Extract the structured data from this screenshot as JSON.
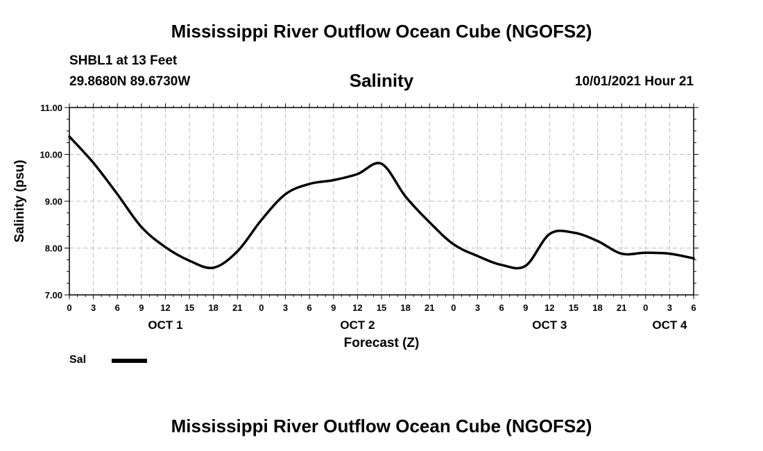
{
  "header": {
    "title": "Mississippi River Outflow Ocean Cube (NGOFS2)",
    "station": "SHBL1 at 13 Feet",
    "coordinates": "29.8680N  89.6730W",
    "datetime": "10/01/2021 Hour 21"
  },
  "footer": {
    "title": "Mississippi River Outflow Ocean Cube (NGOFS2)"
  },
  "legend": {
    "label": "Sal",
    "color": "#000000"
  },
  "chart_data": {
    "type": "line",
    "title": "Salinity",
    "xlabel": "Forecast (Z)",
    "ylabel": "Salinity (psu)",
    "ylim": [
      7.0,
      11.0
    ],
    "yticks": [
      "7.00",
      "8.00",
      "9.00",
      "10.00",
      "11.00"
    ],
    "xlim": [
      0,
      78
    ],
    "xticks": [
      0,
      3,
      6,
      9,
      12,
      15,
      18,
      21,
      24,
      27,
      30,
      33,
      36,
      39,
      42,
      45,
      48,
      51,
      54,
      57,
      60,
      63,
      66,
      69,
      72,
      75,
      78
    ],
    "xtick_labels": [
      "0",
      "3",
      "6",
      "9",
      "12",
      "15",
      "18",
      "21",
      "0",
      "3",
      "6",
      "9",
      "12",
      "15",
      "18",
      "21",
      "0",
      "3",
      "6",
      "9",
      "12",
      "15",
      "18",
      "21",
      "0",
      "3",
      "6"
    ],
    "day_labels": [
      {
        "label": "OCT 1",
        "hour": 12
      },
      {
        "label": "OCT 2",
        "hour": 36
      },
      {
        "label": "OCT 3",
        "hour": 60
      },
      {
        "label": "OCT 4",
        "hour": 75
      }
    ],
    "grid": true,
    "series": [
      {
        "name": "Sal",
        "x": [
          0,
          3,
          6,
          9,
          12,
          15,
          18,
          21,
          24,
          27,
          30,
          33,
          36,
          39,
          42,
          45,
          48,
          51,
          54,
          57,
          60,
          63,
          66,
          69,
          72,
          75,
          78
        ],
        "values": [
          10.38,
          9.82,
          9.15,
          8.45,
          8.02,
          7.73,
          7.58,
          7.93,
          8.6,
          9.15,
          9.37,
          9.45,
          9.58,
          9.8,
          9.1,
          8.55,
          8.08,
          7.83,
          7.64,
          7.62,
          8.3,
          8.33,
          8.15,
          7.88,
          7.9,
          7.88,
          7.78
        ]
      }
    ]
  }
}
